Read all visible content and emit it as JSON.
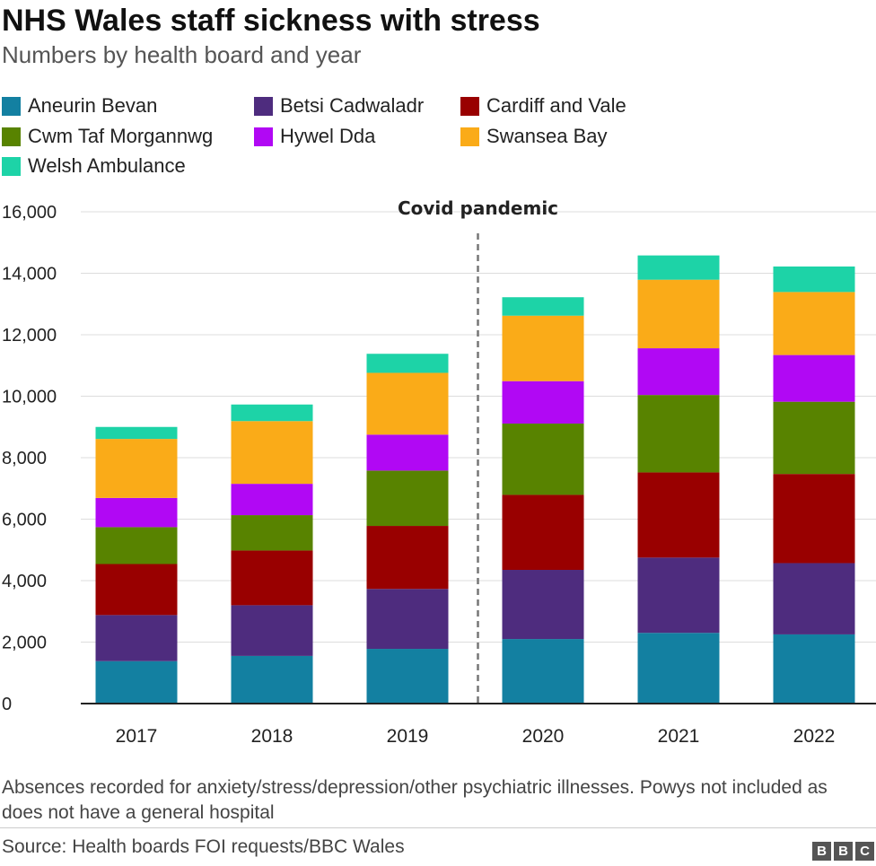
{
  "chart_data": {
    "type": "bar",
    "stacked": true,
    "title": "NHS Wales staff sickness with stress",
    "subtitle": "Numbers by health board and year",
    "categories": [
      "2017",
      "2018",
      "2019",
      "2020",
      "2021",
      "2022"
    ],
    "series": [
      {
        "name": "Aneurin Bevan",
        "color": "#1380A1",
        "values": [
          1380,
          1550,
          1780,
          2100,
          2300,
          2250
        ]
      },
      {
        "name": "Betsi Cadwaladr",
        "color": "#4E2C7E",
        "values": [
          1500,
          1650,
          1950,
          2250,
          2450,
          2320
        ]
      },
      {
        "name": "Cardiff and Vale",
        "color": "#990000",
        "values": [
          1660,
          1780,
          2050,
          2440,
          2770,
          2900
        ]
      },
      {
        "name": "Cwm Taf Morgannwg",
        "color": "#588300",
        "values": [
          1200,
          1150,
          1800,
          2320,
          2520,
          2350
        ]
      },
      {
        "name": "Hywel Dda",
        "color": "#B108F4",
        "values": [
          950,
          1020,
          1170,
          1380,
          1520,
          1520
        ]
      },
      {
        "name": "Swansea Bay",
        "color": "#FAAB18",
        "values": [
          1920,
          2040,
          2010,
          2130,
          2230,
          2050
        ]
      },
      {
        "name": "Welsh Ambulance",
        "color": "#1DD3A7",
        "values": [
          390,
          540,
          620,
          600,
          790,
          830
        ]
      }
    ],
    "yticks": [
      "0",
      "2,000",
      "4,000",
      "6,000",
      "8,000",
      "10,000",
      "12,000",
      "14,000",
      "16,000"
    ],
    "ylim": [
      0,
      16000
    ],
    "annotation": {
      "label": "Covid pandemic",
      "between": [
        "2019",
        "2020"
      ]
    },
    "grid": true,
    "legend_position": "top-left"
  },
  "note": "Absences recorded for anxiety/stress/depression/other psychiatric illnesses. Powys not included as does not have a general hospital",
  "source": "Source: Health boards FOI requests/BBC Wales",
  "logo": [
    "B",
    "B",
    "C"
  ]
}
